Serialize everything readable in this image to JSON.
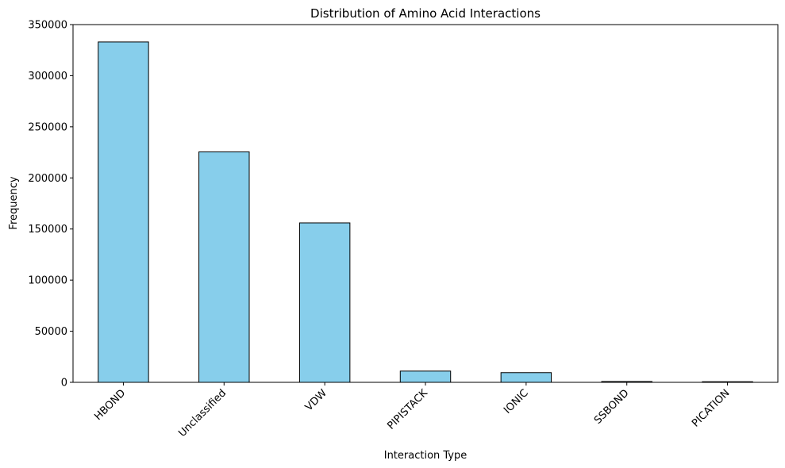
{
  "chart_data": {
    "type": "bar",
    "title": "Distribution of Amino Acid Interactions",
    "xlabel": "Interaction Type",
    "ylabel": "Frequency",
    "categories": [
      "HBOND",
      "Unclassified",
      "VDW",
      "PIPISTACK",
      "IONIC",
      "SSBOND",
      "PICATION"
    ],
    "values": [
      333000,
      225500,
      156000,
      11000,
      9500,
      800,
      600
    ],
    "ylim": [
      0,
      350000
    ],
    "yticks": [
      0,
      50000,
      100000,
      150000,
      200000,
      250000,
      300000,
      350000
    ],
    "grid": false,
    "bar_color": "#87CEEB",
    "edge_color": "#000000"
  }
}
